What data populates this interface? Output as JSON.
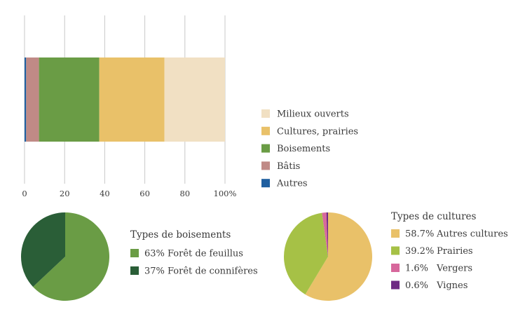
{
  "chart_data": [
    {
      "type": "bar",
      "orientation": "horizontal",
      "stacked": true,
      "xlim": [
        0,
        100
      ],
      "x_ticks": [
        "0",
        "20",
        "40",
        "60",
        "80",
        "100%"
      ],
      "grid": true,
      "legend_position": "right",
      "series": [
        {
          "name": "Autres",
          "value": 0.8,
          "color": "#1f5fa0"
        },
        {
          "name": "Bâtis",
          "value": 6.4,
          "color": "#c08a86"
        },
        {
          "name": "Boisements",
          "value": 30.1,
          "color": "#6a9c45"
        },
        {
          "name": "Cultures, prairies",
          "value": 32.5,
          "color": "#e9c169"
        },
        {
          "name": "Milieux ouverts",
          "value": 30.2,
          "color": "#f1e0c3"
        }
      ],
      "legend_order": [
        "Milieux ouverts",
        "Cultures, prairies",
        "Boisements",
        "Bâtis",
        "Autres"
      ]
    },
    {
      "type": "pie",
      "title": "Types de boisements",
      "slices": [
        {
          "label": "Forêt de feuillus",
          "pct_label": "63%",
          "value": 63,
          "color": "#6a9c45"
        },
        {
          "label": "Forêt de connifères",
          "pct_label": "37%",
          "value": 37,
          "color": "#2a5e37"
        }
      ]
    },
    {
      "type": "pie",
      "title": "Types de cultures",
      "slices": [
        {
          "label": "Autres cultures",
          "pct_label": "58.7%",
          "value": 58.7,
          "color": "#e9c169"
        },
        {
          "label": "Prairies",
          "pct_label": "39.2%",
          "value": 39.2,
          "color": "#a6c146"
        },
        {
          "label": "Vergers",
          "pct_label": "1.6%",
          "value": 1.6,
          "color": "#d7689c"
        },
        {
          "label": "Vignes",
          "pct_label": "0.6%",
          "value": 0.6,
          "color": "#6e2a84"
        }
      ]
    }
  ]
}
